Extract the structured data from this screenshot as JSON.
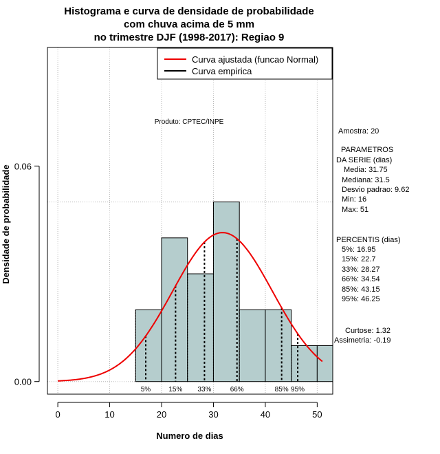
{
  "chart_data": {
    "type": "histogram",
    "title_lines": [
      "Histograma e curva de densidade de probabilidade",
      "com chuva acima de 5 mm",
      "no trimestre DJF (1998-2017): Regiao 9"
    ],
    "xlabel": "Numero de dias",
    "ylabel": "Densidade de probabilidade",
    "xlim": [
      -2,
      53
    ],
    "ylim": [
      -0.0035,
      0.093
    ],
    "x_ticks": [
      0,
      10,
      20,
      30,
      40,
      50
    ],
    "x_tick_labels": [
      "0",
      "10",
      "20",
      "30",
      "40",
      "50"
    ],
    "y_ticks": [
      0.0,
      0.06
    ],
    "y_tick_labels": [
      "0.00",
      "0.06"
    ],
    "grid": true,
    "grid_x": [
      0,
      10,
      20,
      30,
      40,
      50
    ],
    "grid_y": [
      0.0,
      0.05
    ],
    "bins": [
      {
        "start": 15,
        "end": 20,
        "density": 0.02
      },
      {
        "start": 20,
        "end": 25,
        "density": 0.04
      },
      {
        "start": 25,
        "end": 30,
        "density": 0.03
      },
      {
        "start": 30,
        "end": 35,
        "density": 0.05
      },
      {
        "start": 35,
        "end": 40,
        "density": 0.02
      },
      {
        "start": 40,
        "end": 45,
        "density": 0.02
      },
      {
        "start": 45,
        "end": 50,
        "density": 0.01
      },
      {
        "start": 50,
        "end": 53,
        "density": 0.01
      }
    ],
    "bar_color": "#b5cdcd",
    "normal_fit": {
      "mean": 31.75,
      "sd": 9.62,
      "x_from": 0,
      "x_to": 51,
      "color": "#ee0000"
    },
    "empirical": {
      "x": [
        15,
        20,
        20,
        25,
        25,
        30,
        30,
        35,
        35,
        45,
        45,
        53
      ],
      "color": "#000000"
    },
    "percentiles": [
      {
        "label": "5%",
        "value": 16.95
      },
      {
        "label": "15%",
        "value": 22.7
      },
      {
        "label": "33%",
        "value": 28.27
      },
      {
        "label": "66%",
        "value": 34.54
      },
      {
        "label": "85%",
        "value": 43.15
      },
      {
        "label": "95%",
        "value": 46.25
      }
    ],
    "legend": {
      "position": "top-right",
      "entries": [
        {
          "label": "Curva ajustada (funcao Normal)",
          "color": "#ee0000"
        },
        {
          "label": "Curva empirica",
          "color": "#000000"
        }
      ]
    },
    "annotations": {
      "product": "Produto: CPTEC/INPE",
      "amostra": "Amostra: 20",
      "parametros_title_1": "PARAMETROS",
      "parametros_title_2": "DA SERIE (dias)",
      "media": "Media: 31.75",
      "mediana": "Mediana: 31.5",
      "desvio": "Desvio padrao: 9.62",
      "min": "Min: 16",
      "max": "Max: 51",
      "percentis_title": "PERCENTIS (dias)",
      "p5": "5%: 16.95",
      "p15": "15%: 22.7",
      "p33": "33%: 28.27",
      "p66": "66%: 34.54",
      "p85": "85%: 43.15",
      "p95": "95%: 46.25",
      "curtose": "Curtose: 1.32",
      "assimetria": "Assimetria: -0.19"
    }
  }
}
